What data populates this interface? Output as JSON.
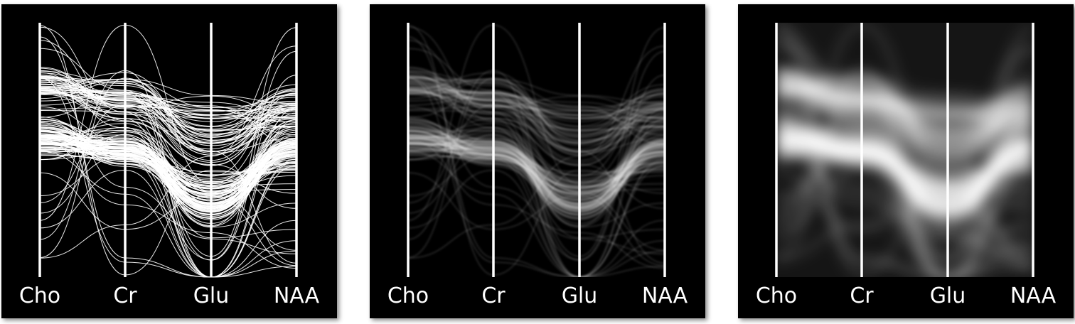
{
  "chart_data": [
    {
      "type": "parallel-coordinates",
      "rendering": "lines",
      "axes": [
        "Cho",
        "Cr",
        "Glu",
        "NAA"
      ],
      "ylim": [
        0,
        1
      ],
      "grid": false,
      "legend": "none"
    },
    {
      "type": "parallel-coordinates",
      "rendering": "density",
      "axes": [
        "Cho",
        "Cr",
        "Glu",
        "NAA"
      ],
      "ylim": [
        0,
        1
      ],
      "grid": false,
      "legend": "none"
    },
    {
      "type": "parallel-coordinates",
      "rendering": "smoothed-density",
      "axes": [
        "Cho",
        "Cr",
        "Glu",
        "NAA"
      ],
      "ylim": [
        0,
        1
      ],
      "grid": false,
      "legend": "none"
    }
  ]
}
